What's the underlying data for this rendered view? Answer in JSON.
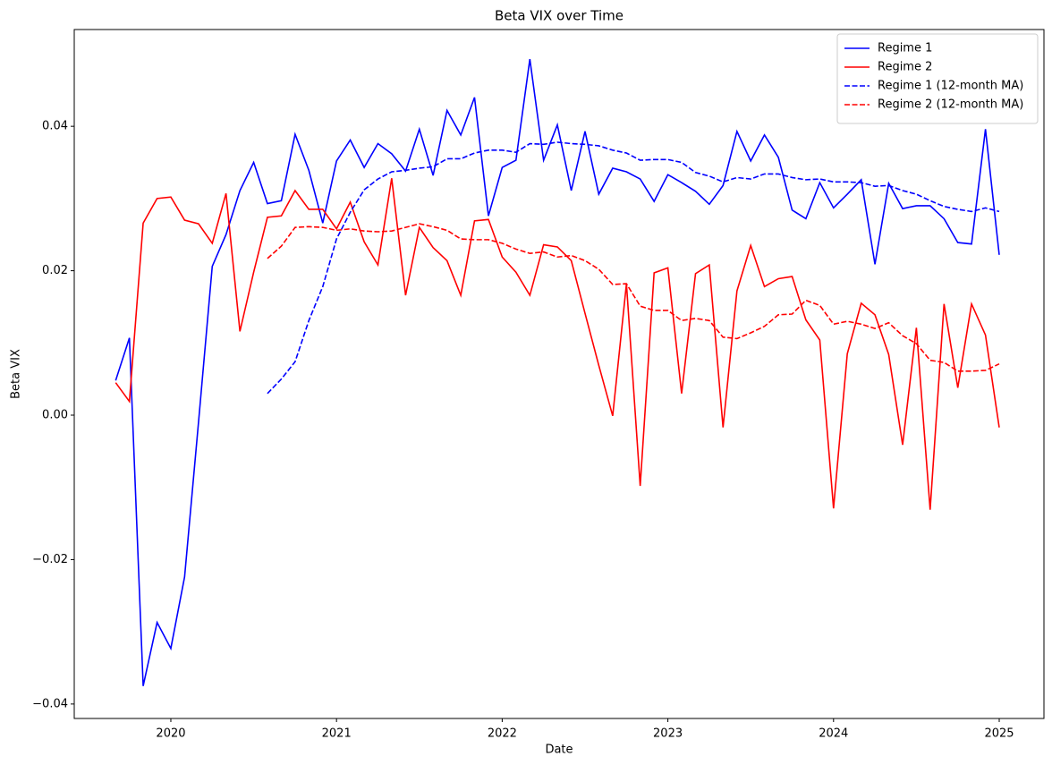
{
  "chart_data": {
    "type": "line",
    "title": "Beta VIX over Time",
    "xlabel": "Date",
    "ylabel": "Beta VIX",
    "x": [
      2019.667,
      2019.75,
      2019.833,
      2019.917,
      2020,
      2020.083,
      2020.167,
      2020.25,
      2020.333,
      2020.417,
      2020.5,
      2020.583,
      2020.667,
      2020.75,
      2020.833,
      2020.917,
      2021,
      2021.083,
      2021.167,
      2021.25,
      2021.333,
      2021.417,
      2021.5,
      2021.583,
      2021.667,
      2021.75,
      2021.833,
      2021.917,
      2022,
      2022.083,
      2022.167,
      2022.25,
      2022.333,
      2022.417,
      2022.5,
      2022.583,
      2022.667,
      2022.75,
      2022.833,
      2022.917,
      2023,
      2023.083,
      2023.167,
      2023.25,
      2023.333,
      2023.417,
      2023.5,
      2023.583,
      2023.667,
      2023.75,
      2023.833,
      2023.917,
      2024,
      2024.083,
      2024.167,
      2024.25,
      2024.333,
      2024.417,
      2024.5,
      2024.583,
      2024.667,
      2024.75,
      2024.833,
      2024.917,
      2025
    ],
    "series": [
      {
        "name": "Regime 1",
        "color": "#0000ff",
        "linestyle": "solid",
        "values": [
          0.0048,
          0.0107,
          -0.0375,
          -0.0287,
          -0.0323,
          -0.0224,
          -0.001,
          0.0206,
          0.025,
          0.0311,
          0.035,
          0.0293,
          0.0297,
          0.0389,
          0.0339,
          0.0266,
          0.0352,
          0.0381,
          0.0343,
          0.0376,
          0.0362,
          0.0338,
          0.0396,
          0.0332,
          0.0422,
          0.0388,
          0.044,
          0.0276,
          0.0343,
          0.0353,
          0.0493,
          0.0353,
          0.0402,
          0.0311,
          0.0393,
          0.0306,
          0.0342,
          0.0337,
          0.0327,
          0.0296,
          0.0333,
          0.0322,
          0.031,
          0.0292,
          0.0318,
          0.0393,
          0.0352,
          0.0388,
          0.0357,
          0.0284,
          0.0272,
          0.0322,
          0.0287,
          0.0306,
          0.0326,
          0.0209,
          0.0321,
          0.0286,
          0.029,
          0.029,
          0.0272,
          0.0239,
          0.0237,
          0.0396,
          0.0222
        ]
      },
      {
        "name": "Regime 2",
        "color": "#ff0000",
        "linestyle": "solid",
        "values": [
          0.0045,
          0.0019,
          0.0266,
          0.03,
          0.0302,
          0.027,
          0.0265,
          0.0238,
          0.0307,
          0.0116,
          0.0198,
          0.0274,
          0.0276,
          0.0311,
          0.0285,
          0.0285,
          0.0258,
          0.0295,
          0.024,
          0.0208,
          0.0328,
          0.0166,
          0.026,
          0.0232,
          0.0214,
          0.0166,
          0.0269,
          0.0271,
          0.0219,
          0.0198,
          0.0166,
          0.0236,
          0.0233,
          0.0214,
          0.0141,
          0.0069,
          -0.0001,
          0.0182,
          -0.0098,
          0.0197,
          0.0204,
          0.003,
          0.0196,
          0.0208,
          -0.0017,
          0.0172,
          0.0235,
          0.0178,
          0.0189,
          0.0192,
          0.0132,
          0.0104,
          -0.0129,
          0.0085,
          0.0155,
          0.0139,
          0.0084,
          -0.0041,
          0.0121,
          -0.0131,
          0.0154,
          0.0038,
          0.0154,
          0.0111,
          -0.0017
        ]
      },
      {
        "name": "Regime 1 (12-month MA)",
        "color": "#0000ff",
        "linestyle": "dashed",
        "values": [
          null,
          null,
          null,
          null,
          null,
          null,
          null,
          null,
          null,
          null,
          null,
          0.003,
          0.005,
          0.0074,
          0.0131,
          0.0178,
          0.0244,
          0.0281,
          0.0312,
          0.0327,
          0.0337,
          0.0339,
          0.0342,
          0.0344,
          0.0355,
          0.0355,
          0.0363,
          0.0367,
          0.0367,
          0.0364,
          0.0376,
          0.0375,
          0.0378,
          0.0376,
          0.0375,
          0.0373,
          0.0367,
          0.0363,
          0.0353,
          0.0354,
          0.0354,
          0.035,
          0.0336,
          0.0331,
          0.0323,
          0.0329,
          0.0327,
          0.0334,
          0.0334,
          0.0329,
          0.0326,
          0.0327,
          0.0323,
          0.0323,
          0.0322,
          0.0317,
          0.0318,
          0.0311,
          0.0306,
          0.0297,
          0.0289,
          0.0285,
          0.0282,
          0.0287,
          0.0282
        ]
      },
      {
        "name": "Regime 2 (12-month MA)",
        "color": "#ff0000",
        "linestyle": "dashed",
        "values": [
          null,
          null,
          null,
          null,
          null,
          null,
          null,
          null,
          null,
          null,
          null,
          0.0217,
          0.0234,
          0.026,
          0.0261,
          0.026,
          0.0256,
          0.0258,
          0.0255,
          0.0254,
          0.0255,
          0.026,
          0.0265,
          0.0261,
          0.0256,
          0.0244,
          0.0243,
          0.0243,
          0.0238,
          0.023,
          0.0224,
          0.0226,
          0.0219,
          0.0221,
          0.0214,
          0.0202,
          0.0181,
          0.0182,
          0.0151,
          0.0145,
          0.0145,
          0.0131,
          0.0134,
          0.0131,
          0.0108,
          0.0106,
          0.0114,
          0.0123,
          0.0139,
          0.014,
          0.0159,
          0.0152,
          0.0126,
          0.013,
          0.0126,
          0.012,
          0.0128,
          0.011,
          0.0099,
          0.0076,
          0.0073,
          0.0061,
          0.0061,
          0.0062,
          0.0071
        ]
      }
    ],
    "xlim": [
      2019.417,
      2025.27
    ],
    "xticks": [
      2020,
      2021,
      2022,
      2023,
      2024,
      2025
    ],
    "ylim": [
      -0.042,
      0.0534
    ],
    "yticks": [
      {
        "value": -0.04,
        "label": "−0.04"
      },
      {
        "value": -0.02,
        "label": "−0.02"
      },
      {
        "value": 0,
        "label": "0.00"
      },
      0.02,
      0.04
    ],
    "grid": false,
    "legend": "upper right"
  }
}
